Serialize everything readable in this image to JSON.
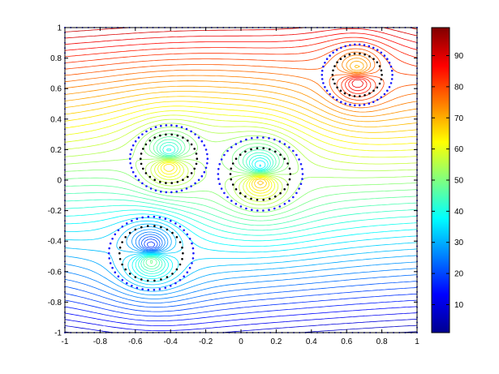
{
  "chart_data": {
    "type": "contour",
    "title": "",
    "xlabel": "",
    "ylabel": "",
    "xlim": [
      -1,
      1
    ],
    "ylim": [
      -1,
      1
    ],
    "x_ticks": [
      "-1",
      "-0.8",
      "-0.6",
      "-0.4",
      "-0.2",
      "0",
      "0.2",
      "0.4",
      "0.6",
      "0.8",
      "1"
    ],
    "y_ticks": [
      "-1",
      "-0.8",
      "-0.6",
      "-0.4",
      "-0.2",
      "0",
      "0.2",
      "0.4",
      "0.6",
      "0.8",
      "1"
    ],
    "colorbar": {
      "range": [
        1,
        99
      ],
      "ticks": [
        "10",
        "20",
        "30",
        "40",
        "50",
        "60",
        "70",
        "80",
        "90"
      ],
      "colormap": "jet"
    },
    "contour_levels": {
      "min": 1,
      "max": 99,
      "count": 50
    },
    "circles": [
      {
        "name": "circle-upper-right",
        "center": [
          0.66,
          0.69
        ],
        "outer_radius": 0.2,
        "inner_radius": 0.14
      },
      {
        "name": "circle-left-middle",
        "center": [
          -0.41,
          0.14
        ],
        "outer_radius": 0.22,
        "inner_radius": 0.16
      },
      {
        "name": "circle-center",
        "center": [
          0.11,
          0.04
        ],
        "outer_radius": 0.24,
        "inner_radius": 0.17
      },
      {
        "name": "circle-lower-left",
        "center": [
          -0.51,
          -0.48
        ],
        "outer_radius": 0.24,
        "inner_radius": 0.18
      }
    ],
    "grid": false,
    "legend": "none"
  }
}
